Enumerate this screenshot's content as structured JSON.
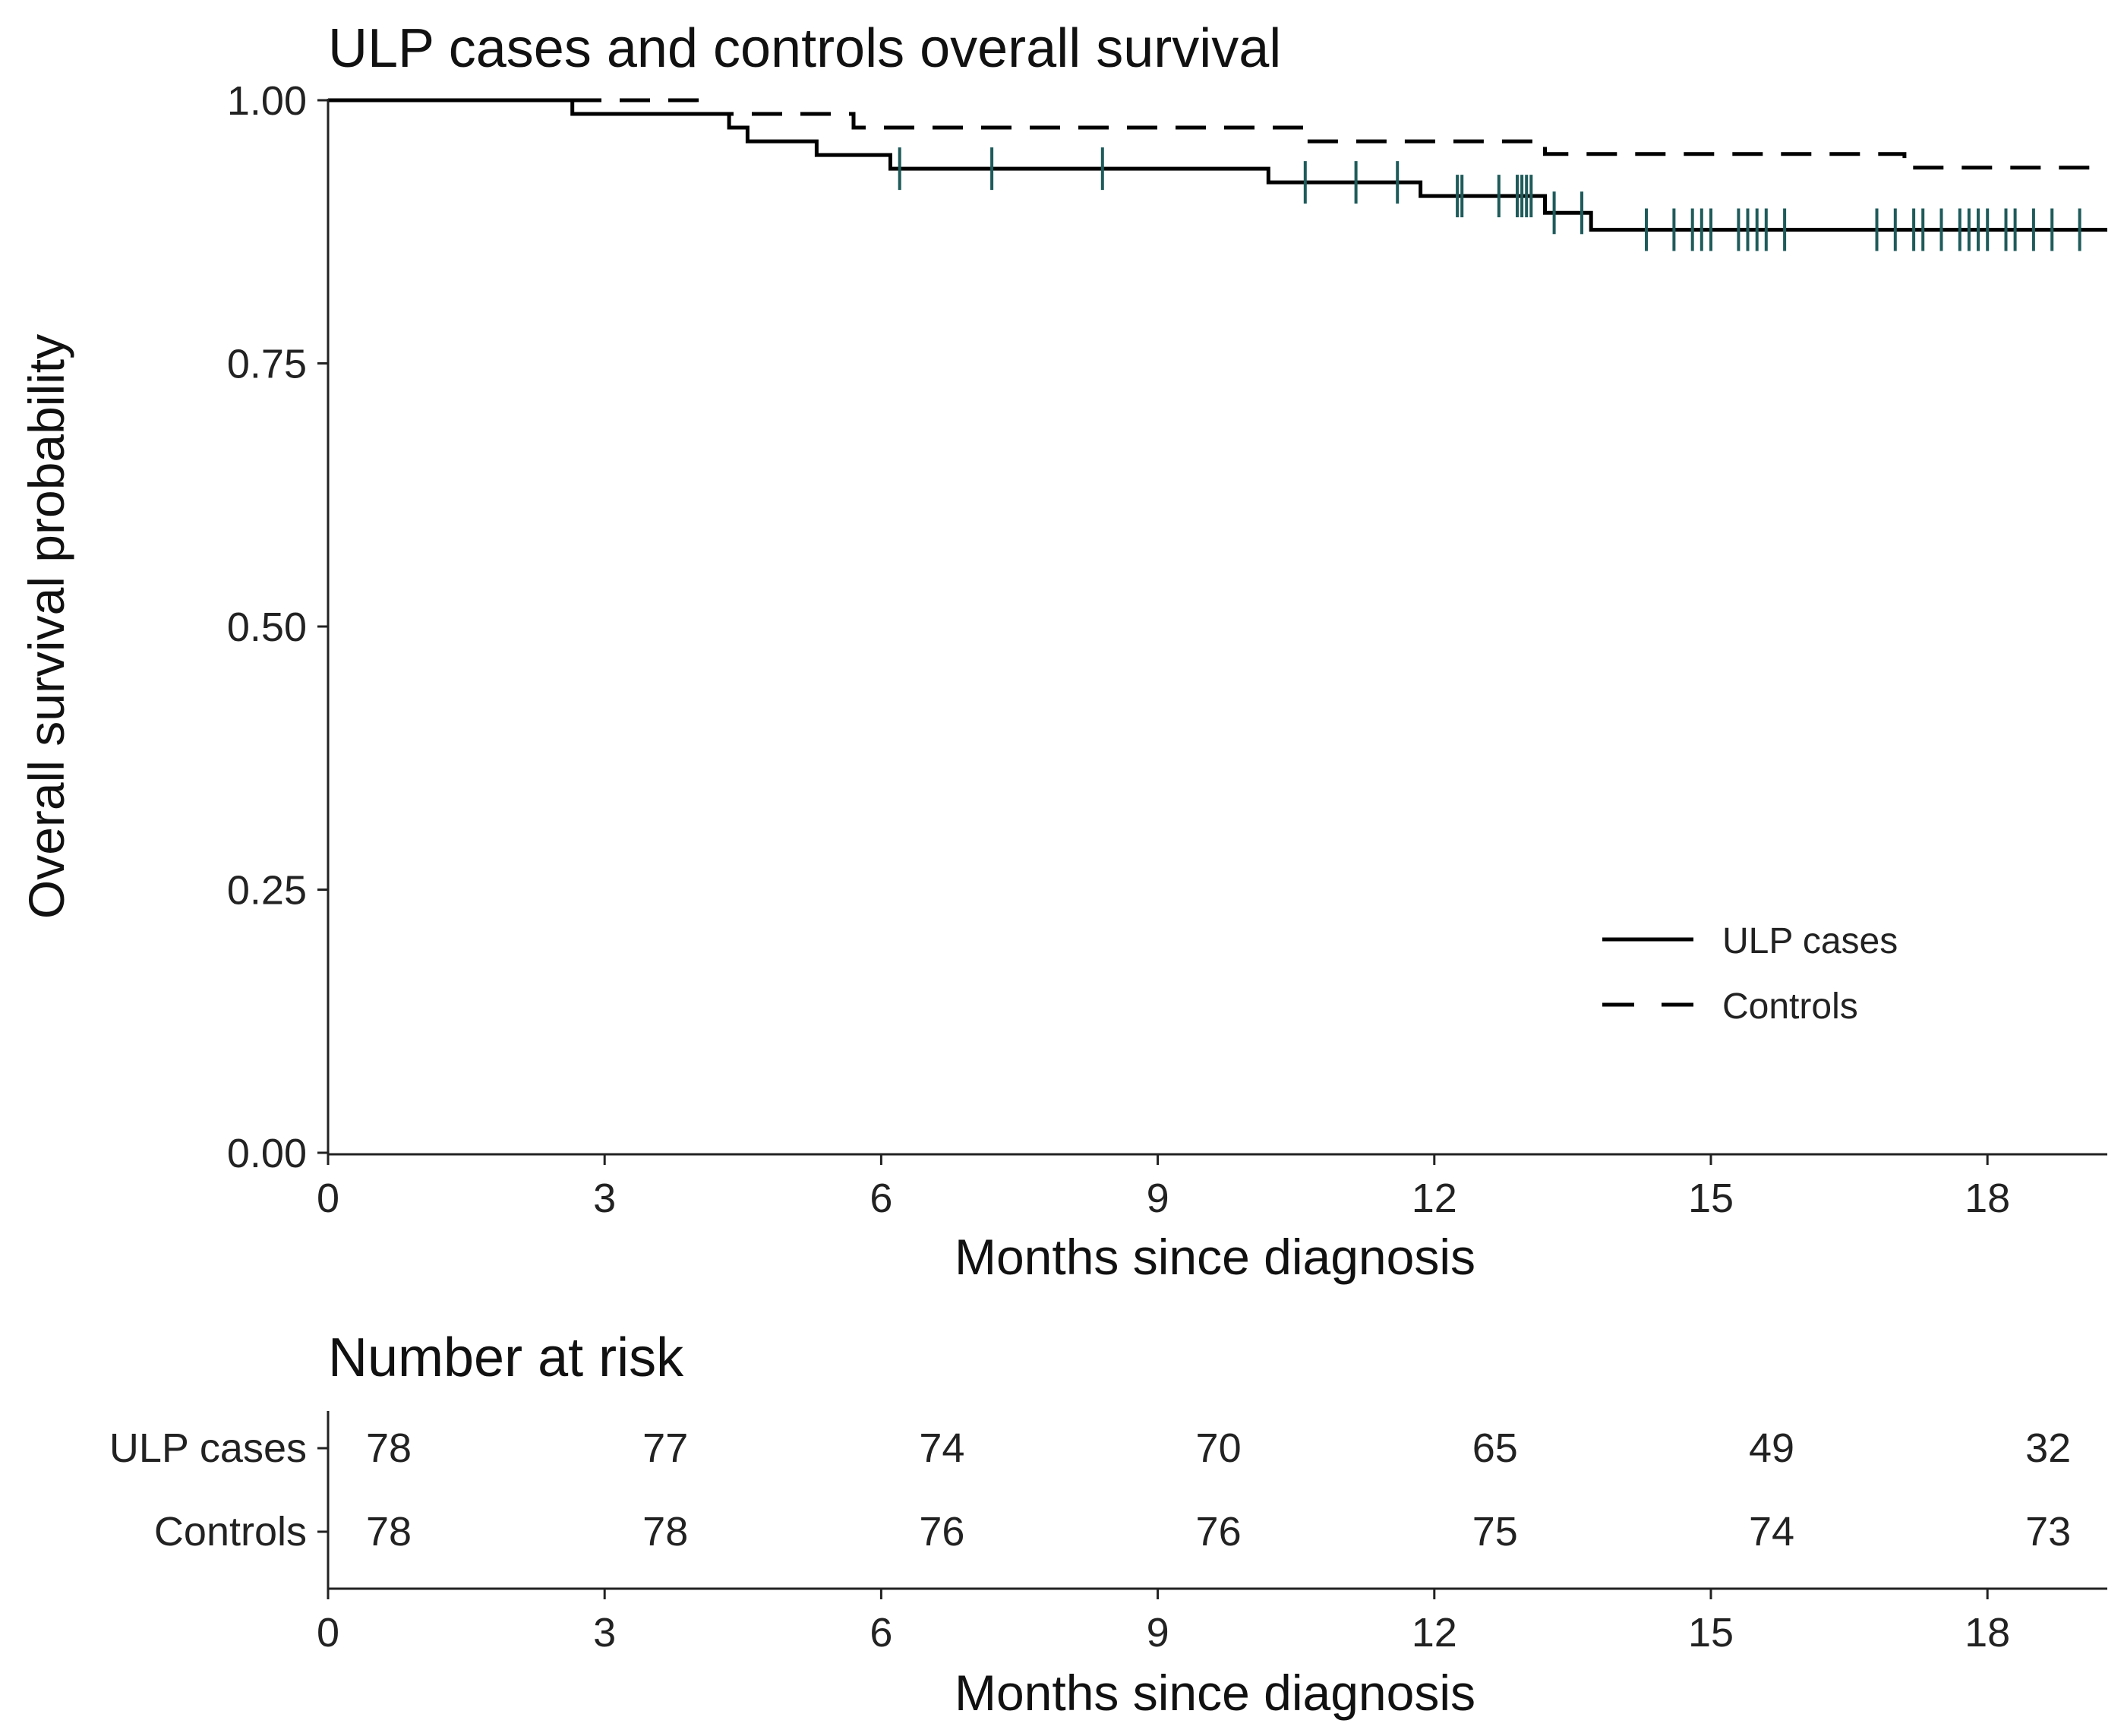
{
  "chart_data": [
    {
      "type": "line",
      "subtype": "kaplan-meier",
      "title": "ULP cases and controls overall survival",
      "xlabel": "Months since diagnosis",
      "ylabel": "Overall survival probability",
      "xlim": [
        0,
        19.3
      ],
      "ylim": [
        0,
        1
      ],
      "xticks": [
        0,
        3,
        6,
        9,
        12,
        15,
        18
      ],
      "yticks": [
        "0.00",
        "0.25",
        "0.50",
        "0.75",
        "1.00"
      ],
      "legend": {
        "position": "bottom-right",
        "entries": [
          "ULP cases",
          "Controls"
        ]
      },
      "series": [
        {
          "name": "ULP cases",
          "style": "solid",
          "steps": [
            [
              0,
              1.0
            ],
            [
              2.65,
              0.987
            ],
            [
              4.35,
              0.974
            ],
            [
              4.55,
              0.961
            ],
            [
              5.3,
              0.948
            ],
            [
              6.1,
              0.935
            ],
            [
              10.2,
              0.922
            ],
            [
              11.85,
              0.909
            ],
            [
              13.2,
              0.893
            ],
            [
              13.7,
              0.877
            ],
            [
              19.3,
              0.877
            ]
          ],
          "censored": [
            [
              6.2,
              0.935
            ],
            [
              7.2,
              0.935
            ],
            [
              8.4,
              0.935
            ],
            [
              10.6,
              0.922
            ],
            [
              11.15,
              0.922
            ],
            [
              11.6,
              0.922
            ],
            [
              12.25,
              0.909
            ],
            [
              12.3,
              0.909
            ],
            [
              12.7,
              0.909
            ],
            [
              12.9,
              0.909
            ],
            [
              12.95,
              0.909
            ],
            [
              13.0,
              0.909
            ],
            [
              13.05,
              0.909
            ],
            [
              13.3,
              0.893
            ],
            [
              13.6,
              0.893
            ],
            [
              14.3,
              0.877
            ],
            [
              14.6,
              0.877
            ],
            [
              14.8,
              0.877
            ],
            [
              14.9,
              0.877
            ],
            [
              15.0,
              0.877
            ],
            [
              15.3,
              0.877
            ],
            [
              15.4,
              0.877
            ],
            [
              15.5,
              0.877
            ],
            [
              15.6,
              0.877
            ],
            [
              15.8,
              0.877
            ],
            [
              16.8,
              0.877
            ],
            [
              17.0,
              0.877
            ],
            [
              17.2,
              0.877
            ],
            [
              17.3,
              0.877
            ],
            [
              17.5,
              0.877
            ],
            [
              17.7,
              0.877
            ],
            [
              17.8,
              0.877
            ],
            [
              17.9,
              0.877
            ],
            [
              18.0,
              0.877
            ],
            [
              18.2,
              0.877
            ],
            [
              18.3,
              0.877
            ],
            [
              18.5,
              0.877
            ],
            [
              18.7,
              0.877
            ],
            [
              19.0,
              0.877
            ]
          ]
        },
        {
          "name": "Controls",
          "style": "dashed",
          "steps": [
            [
              0,
              1.0
            ],
            [
              4.0,
              0.987
            ],
            [
              5.7,
              0.974
            ],
            [
              10.6,
              0.961
            ],
            [
              13.2,
              0.949
            ],
            [
              17.1,
              0.936
            ],
            [
              19.3,
              0.936
            ]
          ],
          "censored": []
        }
      ]
    },
    {
      "type": "table",
      "title": "Number at risk",
      "xlabel": "Months since diagnosis",
      "xlim": [
        0,
        19.3
      ],
      "xticks": [
        0,
        3,
        6,
        9,
        12,
        15,
        18
      ],
      "rows": [
        {
          "label": "ULP cases",
          "values": [
            "78",
            "77",
            "74",
            "70",
            "65",
            "49",
            "32"
          ]
        },
        {
          "label": "Controls",
          "values": [
            "78",
            "78",
            "76",
            "76",
            "75",
            "74",
            "73"
          ]
        }
      ]
    }
  ]
}
